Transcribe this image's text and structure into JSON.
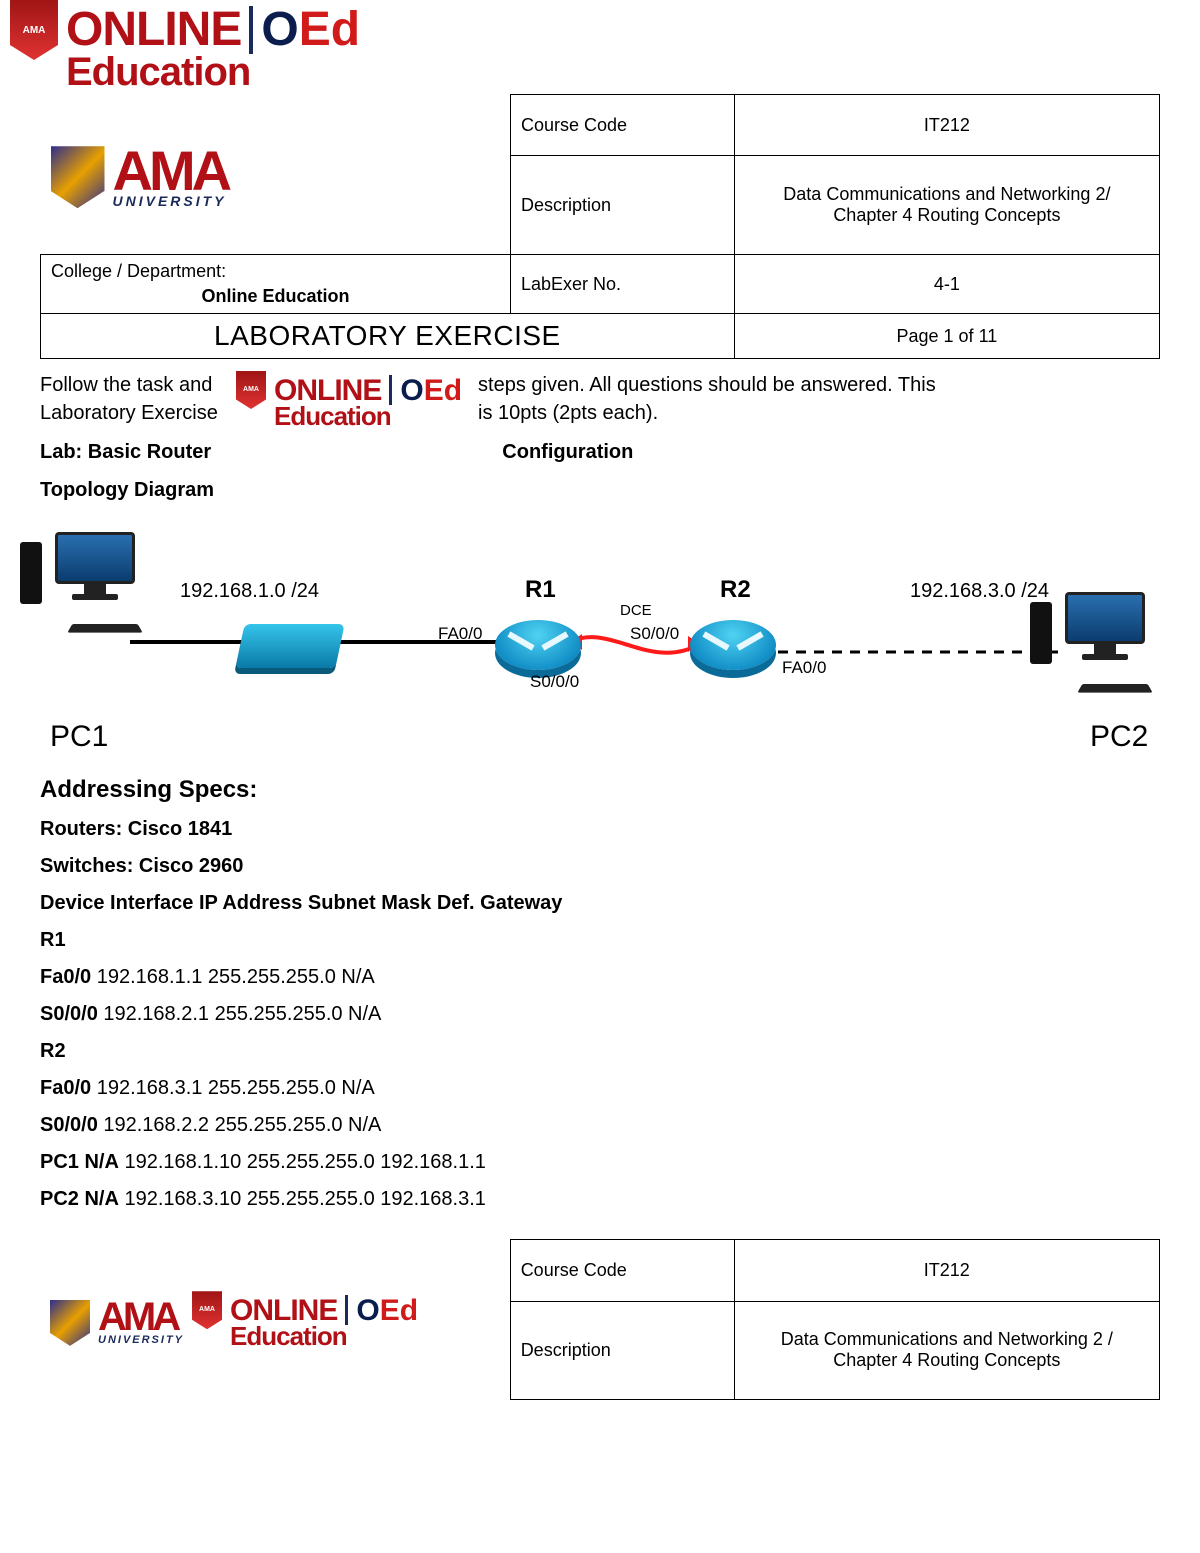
{
  "header": {
    "logos": {
      "shield_text": "AMA",
      "online": "ONLINE",
      "education": "Education",
      "oed_o": "O",
      "oed_ed": "Ed",
      "ama": "AMA",
      "university": "UNIVERSITY"
    },
    "course_code_label": "Course Code",
    "course_code_value": "IT212",
    "description_label": "Description",
    "description_value_1": "Data Communications and Networking 2/",
    "description_value_2": "Chapter 4 Routing Concepts",
    "college_label": "College / Department:",
    "college_value": "Online Education",
    "labexer_label": "LabExer No.",
    "labexer_value": "4-1",
    "lab_title": "LABORATORY EXERCISE",
    "page_label": "Page 1 of 11"
  },
  "intro": {
    "line_left_1": "Follow the task and",
    "line_left_2": "Laboratory Exercise",
    "line_right_1": "steps given. All questions should be answered. This",
    "line_right_2": "is 10pts (2pts each).",
    "lab_label": "Lab: Basic Router",
    "config_label": "Configuration",
    "topo_label": "Topology Diagram"
  },
  "topology": {
    "net_left": "192.168.1.0 /24",
    "net_right": "192.168.3.0 /24",
    "r1": "R1",
    "r2": "R2",
    "fa00_l": "FA0/0",
    "fa00_r": "FA0/0",
    "s000_l": "S0/0/0",
    "s000_r": "S0/0/0",
    "dce": "DCE",
    "pc1": "PC1",
    "pc2": "PC2",
    "colors": {
      "device_blue": "#1390c8",
      "cable_black": "#000000",
      "serial_red": "#ff1a1a"
    }
  },
  "specs": {
    "heading": "Addressing Specs:",
    "routers": "Routers: Cisco 1841",
    "switches": "Switches: Cisco 2960",
    "table_hdr_bold": "Device Interface IP Address Subnet Mask Def. Gateway",
    "rows": [
      {
        "b": "R1",
        "rest": ""
      },
      {
        "b": "Fa0/0",
        "rest": " 192.168.1.1 255.255.255.0 N/A"
      },
      {
        "b": "S0/0/0",
        "rest": " 192.168.2.1 255.255.255.0 N/A"
      },
      {
        "b": "R2",
        "rest": ""
      },
      {
        "b": "Fa0/0",
        "rest": " 192.168.3.1 255.255.255.0 N/A"
      },
      {
        "b": "S0/0/0",
        "rest": " 192.168.2.2 255.255.255.0 N/A"
      },
      {
        "b": "PC1 N/A",
        "rest": " 192.168.1.10 255.255.255.0 192.168.1.1"
      },
      {
        "b": "PC2 N/A",
        "rest": " 192.168.3.10 255.255.255.0 192.168.3.1"
      }
    ]
  },
  "footer": {
    "course_code_label": "Course Code",
    "course_code_value": "IT212",
    "description_label": "Description",
    "description_value_1": "Data Communications and Networking 2 /",
    "description_value_2": "Chapter 4 Routing Concepts"
  }
}
